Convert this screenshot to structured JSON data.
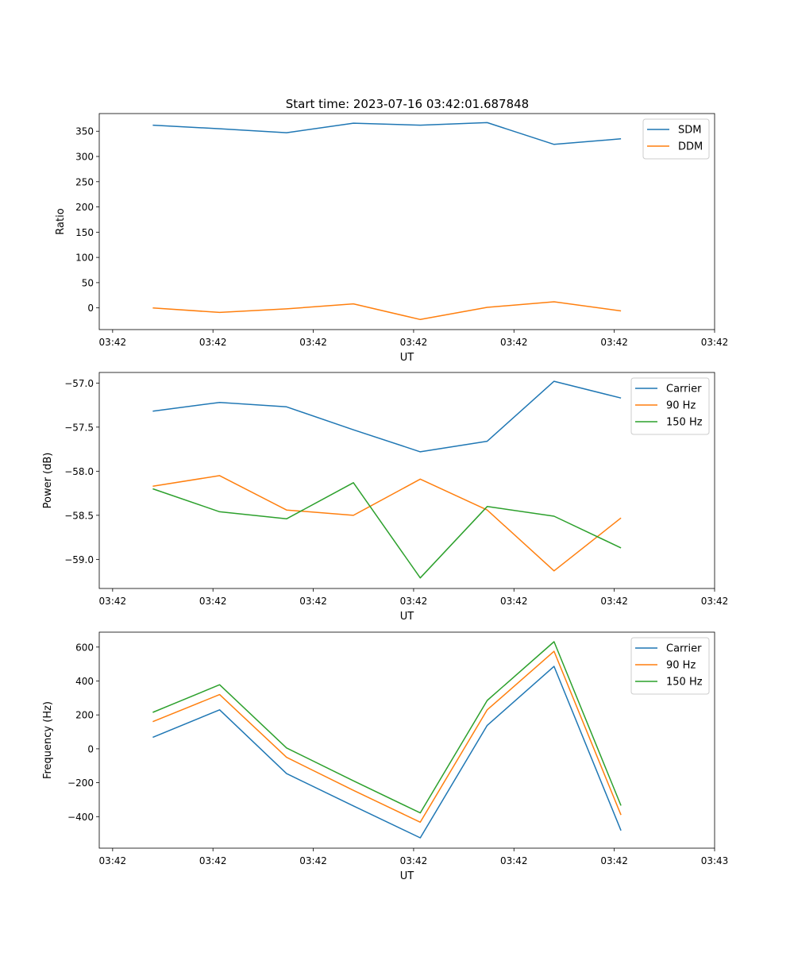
{
  "figure": {
    "title": "Start time: 2023-07-16 03:42:01.687848"
  },
  "chart_data": [
    {
      "type": "line",
      "xlabel": "UT",
      "ylabel": "Ratio",
      "x": [
        1,
        2,
        3,
        4,
        5,
        6,
        7,
        8
      ],
      "xlim": [
        0.2,
        9.4
      ],
      "x_ticks": [
        0.4,
        1.9,
        3.4,
        4.9,
        6.4,
        7.9,
        9.4
      ],
      "x_tick_labels": [
        "03:42",
        "03:42",
        "03:42",
        "03:42",
        "03:42",
        "03:42",
        "03:42"
      ],
      "ylim": [
        -43,
        385
      ],
      "y_ticks": [
        0,
        50,
        100,
        150,
        200,
        250,
        300,
        350
      ],
      "y_tick_labels": [
        "0",
        "50",
        "100",
        "150",
        "200",
        "250",
        "300",
        "350"
      ],
      "legend_position": "top-right",
      "series": [
        {
          "name": "SDM",
          "color": "#1f77b4",
          "values": [
            362,
            355,
            347,
            366,
            362,
            367,
            324,
            335
          ]
        },
        {
          "name": "DDM",
          "color": "#ff7f0e",
          "values": [
            0,
            -9,
            -2,
            8,
            -23,
            1,
            12,
            -6
          ]
        }
      ]
    },
    {
      "type": "line",
      "xlabel": "UT",
      "ylabel": "Power (dB)",
      "x": [
        1,
        2,
        3,
        4,
        5,
        6,
        7,
        8
      ],
      "xlim": [
        0.2,
        9.4
      ],
      "x_ticks": [
        0.4,
        1.9,
        3.4,
        4.9,
        6.4,
        7.9,
        9.4
      ],
      "x_tick_labels": [
        "03:42",
        "03:42",
        "03:42",
        "03:42",
        "03:42",
        "03:42",
        "03:42"
      ],
      "ylim": [
        -59.33,
        -56.88
      ],
      "y_ticks": [
        -57.0,
        -57.5,
        -58.0,
        -58.5,
        -59.0
      ],
      "y_tick_labels": [
        "−57.0",
        "−57.5",
        "−58.0",
        "−58.5",
        "−59.0"
      ],
      "legend_position": "top-right",
      "series": [
        {
          "name": "Carrier",
          "color": "#1f77b4",
          "values": [
            -57.32,
            -57.22,
            -57.27,
            -57.53,
            -57.78,
            -57.66,
            -56.98,
            -57.17
          ]
        },
        {
          "name": "90 Hz",
          "color": "#ff7f0e",
          "values": [
            -58.17,
            -58.05,
            -58.44,
            -58.5,
            -58.09,
            -58.44,
            -59.13,
            -58.53
          ]
        },
        {
          "name": "150 Hz",
          "color": "#2ca02c",
          "values": [
            -58.2,
            -58.46,
            -58.54,
            -58.13,
            -59.21,
            -58.4,
            -58.51,
            -58.87
          ]
        }
      ]
    },
    {
      "type": "line",
      "xlabel": "UT",
      "ylabel": "Frequency (Hz)",
      "x": [
        1,
        2,
        3,
        4,
        5,
        6,
        7,
        8
      ],
      "xlim": [
        0.2,
        9.4
      ],
      "x_ticks": [
        0.4,
        1.9,
        3.4,
        4.9,
        6.4,
        7.9,
        9.4
      ],
      "x_tick_labels": [
        "03:42",
        "03:42",
        "03:42",
        "03:42",
        "03:42",
        "03:42",
        "03:43"
      ],
      "ylim": [
        -586,
        688
      ],
      "y_ticks": [
        600,
        400,
        200,
        0,
        -200,
        -400
      ],
      "y_tick_labels": [
        "600",
        "400",
        "200",
        "0",
        "−200",
        "−400"
      ],
      "legend_position": "top-right",
      "series": [
        {
          "name": "Carrier",
          "color": "#1f77b4",
          "values": [
            68,
            230,
            -146,
            -337,
            -525,
            138,
            486,
            -482
          ]
        },
        {
          "name": "90 Hz",
          "color": "#ff7f0e",
          "values": [
            160,
            320,
            -50,
            -245,
            -433,
            230,
            575,
            -390
          ]
        },
        {
          "name": "150 Hz",
          "color": "#2ca02c",
          "values": [
            215,
            378,
            5,
            -189,
            -378,
            285,
            632,
            -335
          ]
        }
      ]
    }
  ]
}
